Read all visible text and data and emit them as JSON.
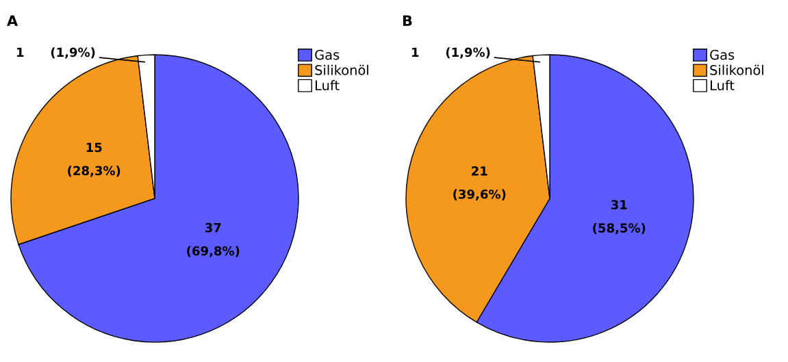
{
  "chart_data": [
    {
      "type": "pie",
      "title": "A",
      "categories": [
        "Gas",
        "Silikonöl",
        "Luft"
      ],
      "values": [
        37,
        15,
        1
      ],
      "colors": [
        "#5b5bff",
        "#f5981e",
        "#ffffff"
      ],
      "value_labels": [
        "37\n(69,8%)",
        "15\n(28,3%)",
        "1      (1,9%)"
      ],
      "legend": "top right"
    },
    {
      "type": "pie",
      "title": "B",
      "categories": [
        "Gas",
        "Silikonöl",
        "Luft"
      ],
      "values": [
        31,
        21,
        1
      ],
      "colors": [
        "#5b5bff",
        "#f5981e",
        "#ffffff"
      ],
      "value_labels": [
        "31\n(58,5%)",
        "21\n(39,6%)",
        "1      (1,9%)"
      ],
      "legend": "top right"
    }
  ]
}
